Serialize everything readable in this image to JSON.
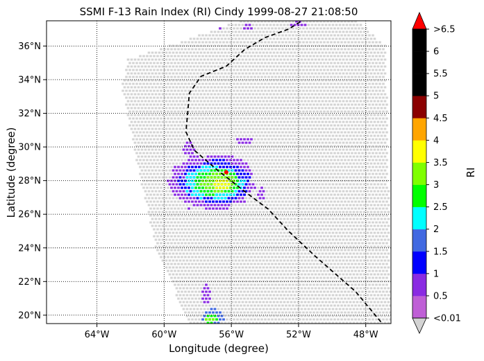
{
  "chart_data": {
    "type": "scatter",
    "title": "SSMI F-13 Rain Index (RI) Cindy 1999-08-27 21:08:50",
    "xlabel": "Longitude (degree)",
    "ylabel": "Latitude (degree)",
    "xlim": [
      -67,
      -46.5
    ],
    "ylim": [
      19.5,
      37.5
    ],
    "grid": true,
    "x_ticks": [
      {
        "value": -64,
        "label": "64°W"
      },
      {
        "value": -60,
        "label": "60°W"
      },
      {
        "value": -56,
        "label": "56°W"
      },
      {
        "value": -52,
        "label": "52°W"
      },
      {
        "value": -48,
        "label": "48°W"
      }
    ],
    "y_ticks": [
      {
        "value": 20,
        "label": "20°N"
      },
      {
        "value": 22,
        "label": "22°N"
      },
      {
        "value": 24,
        "label": "24°N"
      },
      {
        "value": 26,
        "label": "26°N"
      },
      {
        "value": 28,
        "label": "28°N"
      },
      {
        "value": 30,
        "label": "30°N"
      },
      {
        "value": 32,
        "label": "32°N"
      },
      {
        "value": 34,
        "label": "34°N"
      },
      {
        "value": 36,
        "label": "36°N"
      }
    ],
    "swath": {
      "color": "#d3d3d3",
      "corners_lon_lat": [
        [
          -62.5,
          33.5
        ],
        [
          -62.2,
          35.2
        ],
        [
          -59.2,
          36.2
        ],
        [
          -55.5,
          37.5
        ],
        [
          -48.5,
          37.5
        ],
        [
          -46.8,
          36.0
        ],
        [
          -46.5,
          19.5
        ],
        [
          -58.5,
          19.5
        ],
        [
          -60.5,
          24.0
        ],
        [
          -61.8,
          30.0
        ]
      ]
    },
    "track": {
      "style": "dashed",
      "color": "#000000",
      "points": [
        [
          -47.1,
          19.6
        ],
        [
          -48.6,
          21.4
        ],
        [
          -51.0,
          23.5
        ],
        [
          -52.6,
          25.0
        ],
        [
          -53.8,
          26.3
        ],
        [
          -55.0,
          27.2
        ],
        [
          -56.8,
          28.6
        ],
        [
          -58.2,
          29.8
        ],
        [
          -58.7,
          30.9
        ],
        [
          -58.6,
          32.0
        ],
        [
          -58.5,
          33.2
        ],
        [
          -57.8,
          34.2
        ],
        [
          -56.3,
          34.8
        ],
        [
          -55.2,
          35.8
        ],
        [
          -54.0,
          36.5
        ],
        [
          -52.6,
          37.0
        ],
        [
          -51.8,
          37.5
        ]
      ]
    },
    "center_marker": {
      "lon": -56.3,
      "lat": 28.5,
      "color": "#ff0000"
    },
    "rain_cells": [
      {
        "lon": -57.2,
        "lat": 27.9,
        "rx": 2.8,
        "ry": 1.8,
        "level": 1
      },
      {
        "lon": -57.0,
        "lat": 27.9,
        "rx": 2.3,
        "ry": 1.4,
        "level": 2
      },
      {
        "lon": -57.0,
        "lat": 27.9,
        "rx": 1.9,
        "ry": 1.1,
        "level": 4
      },
      {
        "lon": -56.9,
        "lat": 27.9,
        "rx": 1.5,
        "ry": 0.85,
        "level": 5
      },
      {
        "lon": -56.8,
        "lat": 27.9,
        "rx": 1.1,
        "ry": 0.6,
        "level": 6
      },
      {
        "lon": -56.5,
        "lat": 27.8,
        "rx": 0.6,
        "ry": 0.35,
        "level": 7
      },
      {
        "lon": -57.1,
        "lat": 19.9,
        "rx": 0.7,
        "ry": 0.5,
        "level": 3
      },
      {
        "lon": -57.2,
        "lat": 19.8,
        "rx": 0.45,
        "ry": 0.3,
        "level": 5
      },
      {
        "lon": -57.3,
        "lat": 19.75,
        "rx": 0.25,
        "ry": 0.15,
        "level": 6
      },
      {
        "lon": -57.5,
        "lat": 21.3,
        "rx": 0.3,
        "ry": 0.6,
        "level": 1
      },
      {
        "lon": -55.2,
        "lat": 30.4,
        "rx": 0.5,
        "ry": 0.25,
        "level": 1
      },
      {
        "lon": -54.2,
        "lat": 27.2,
        "rx": 0.2,
        "ry": 0.4,
        "level": 1
      },
      {
        "lon": -56.8,
        "lat": 37.2,
        "rx": 0.4,
        "ry": 0.25,
        "level": 1
      },
      {
        "lon": -55.0,
        "lat": 37.1,
        "rx": 0.3,
        "ry": 0.2,
        "level": 1
      },
      {
        "lon": -52.0,
        "lat": 37.3,
        "rx": 0.5,
        "ry": 0.2,
        "level": 1
      },
      {
        "lon": -58.5,
        "lat": 29.9,
        "rx": 0.4,
        "ry": 0.4,
        "level": 1
      }
    ],
    "colorbar": {
      "label": "RI",
      "extend": "both",
      "under_color": "#d3d3d3",
      "over_color": "#ff0000",
      "bins": [
        {
          "from": 0.01,
          "to": 0.5,
          "color": "#bf5fd6"
        },
        {
          "from": 0.5,
          "to": 1.0,
          "color": "#8a2be2"
        },
        {
          "from": 1.0,
          "to": 1.5,
          "color": "#0000ff"
        },
        {
          "from": 1.5,
          "to": 2.0,
          "color": "#4169e1"
        },
        {
          "from": 2.0,
          "to": 2.5,
          "color": "#00ffff"
        },
        {
          "from": 2.5,
          "to": 3.0,
          "color": "#00ff00"
        },
        {
          "from": 3.0,
          "to": 3.5,
          "color": "#7fff00"
        },
        {
          "from": 3.5,
          "to": 4.0,
          "color": "#ffff00"
        },
        {
          "from": 4.0,
          "to": 4.5,
          "color": "#ffa500"
        },
        {
          "from": 4.5,
          "to": 5.0,
          "color": "#8b0000"
        },
        {
          "from": 5.0,
          "to": 5.5,
          "color": "#000000"
        },
        {
          "from": 5.5,
          "to": 6.0,
          "color": "#000000"
        },
        {
          "from": 6.0,
          "to": 6.5,
          "color": "#000000"
        }
      ],
      "tick_labels": [
        "<0.01",
        "0.5",
        "1",
        "1.5",
        "2",
        "2.5",
        "3",
        "3.5",
        "4",
        "4.5",
        "5",
        "5.5",
        "6",
        ">6.5"
      ]
    }
  }
}
